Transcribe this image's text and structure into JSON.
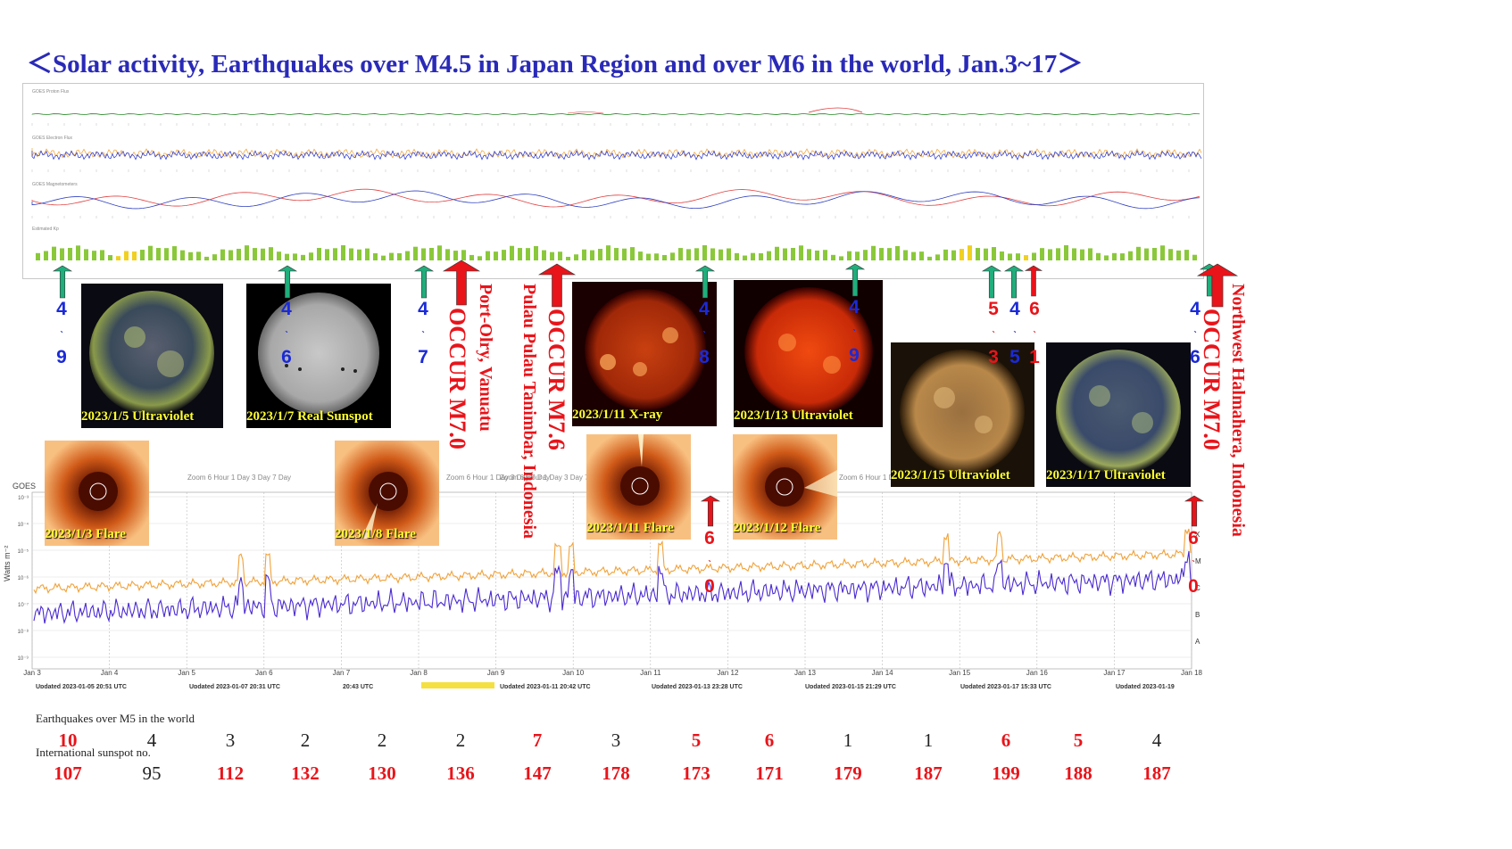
{
  "title": "＜Solar activity, Earthquakes over M4.5 in Japan Region and over M6 in the world,   Jan.3~17＞",
  "colors": {
    "title": "#2a2ab8",
    "red": "#e8141a",
    "blue": "#1a2ad8",
    "green_arrow": "#1fae7c",
    "yellow_caption": "#ffff30",
    "xray_short": "#f0a23a",
    "xray_long": "#4a2ad0"
  },
  "top_panel": {
    "panel_titles": [
      "GOES Proton Flux",
      "GOES Electron Flux",
      "GOES Magnetometers",
      "Estimated Kp"
    ]
  },
  "bottom_panel": {
    "goes_label": "GOES",
    "ylabel": "Watts m⁻²",
    "zoom_label": "Zoom",
    "zoom_opts": [
      "6 Hour",
      "1 Day",
      "3 Day",
      "7 Day"
    ],
    "class_labels": [
      "X",
      "M",
      "C",
      "B",
      "A"
    ],
    "ytick_labels": [
      "10⁻³",
      "10⁻⁴",
      "10⁻⁵",
      "10⁻⁶",
      "10⁻⁷",
      "10⁻⁸",
      "10⁻⁹"
    ],
    "date_labels": [
      "Jan 3",
      "Jan 4",
      "Jan 5",
      "Jan 6",
      "Jan 7",
      "Jan 8",
      "Jan 9",
      "Jan 10",
      "Jan 11",
      "Jan 12",
      "Jan 13",
      "Jan 14",
      "Jan 15",
      "Jan 16",
      "Jan 17",
      "Jan 18"
    ],
    "updated_labels": [
      "Updated 2023-01-05 20:51 UTC",
      "Updated 2023-01-07 20:31 UTC",
      "20:43 UTC",
      "Updated 2023-01-11 20:42 UTC",
      "Updated 2023-01-13 23:28 UTC",
      "Updated 2023-01-15 21:29 UTC",
      "Updated 2023-01-17 15:33 UTC",
      "Updated 2023-01-19"
    ]
  },
  "images": [
    {
      "caption": "2023/1/5 Ultraviolet",
      "icon": "sun-ultraviolet-green"
    },
    {
      "caption": "2023/1/7 Real Sunspot",
      "icon": "sun-white-light"
    },
    {
      "caption": "2023/1/11 X-ray",
      "icon": "sun-xray"
    },
    {
      "caption": "2023/1/13 Ultraviolet",
      "icon": "sun-ultraviolet-red"
    },
    {
      "caption": "2023/1/15 Ultraviolet",
      "icon": "sun-ultraviolet-gold"
    },
    {
      "caption": "2023/1/17 Ultraviolet",
      "icon": "sun-ultraviolet-green"
    },
    {
      "caption": "2023/1/3 Flare",
      "icon": "coronagraph"
    },
    {
      "caption": "2023/1/8 Flare",
      "icon": "coronagraph"
    },
    {
      "caption": "2023/1/11 Flare",
      "icon": "coronagraph"
    },
    {
      "caption": "2023/1/12 Flare",
      "icon": "coronagraph"
    }
  ],
  "japan_quakes": [
    {
      "mag": "4.9",
      "color": "blue"
    },
    {
      "mag": "4.6",
      "color": "blue"
    },
    {
      "mag": "4.7",
      "color": "blue"
    },
    {
      "mag": "4.8",
      "color": "blue"
    },
    {
      "mag": "4.9",
      "color": "blue"
    },
    {
      "mag": "5.3",
      "color": "red"
    },
    {
      "mag": "4.5",
      "color": "blue"
    },
    {
      "mag": "6.1",
      "color": "red"
    },
    {
      "mag": "4.6",
      "color": "blue"
    }
  ],
  "world_quakes": [
    {
      "label": "OCCUR M7.0",
      "place": "Port-Olry, Vanuatu"
    },
    {
      "label": "OCCUR M7.6",
      "place": "Pulau Pulau Tanimbar, Indonesia"
    },
    {
      "label": "OCCUR M7.0",
      "place": "Northwest Halmahera, Indonesia"
    }
  ],
  "small_world_quakes": [
    "6.0",
    "6.0"
  ],
  "row_labels": {
    "quakes": "Earthquakes over M5 in the world",
    "sunspots": "International sunspot no."
  },
  "chart_data": {
    "type": "table",
    "categories": [
      "Jan 3",
      "Jan 4",
      "Jan 5",
      "Jan 6",
      "Jan 7",
      "Jan 8",
      "Jan 9",
      "Jan 10",
      "Jan 11",
      "Jan 12",
      "Jan 13",
      "Jan 14",
      "Jan 15",
      "Jan 16",
      "Jan 17"
    ],
    "series": [
      {
        "name": "Earthquakes over M5 in the world",
        "values": [
          10,
          4,
          3,
          2,
          2,
          2,
          7,
          3,
          5,
          6,
          1,
          1,
          6,
          5,
          4
        ],
        "highlight": [
          true,
          false,
          false,
          false,
          false,
          false,
          true,
          false,
          true,
          true,
          false,
          false,
          true,
          true,
          false
        ]
      },
      {
        "name": "International sunspot no.",
        "values": [
          107,
          95,
          112,
          132,
          130,
          136,
          147,
          178,
          173,
          171,
          179,
          187,
          199,
          188,
          187
        ],
        "highlight": [
          true,
          false,
          true,
          true,
          true,
          true,
          true,
          true,
          true,
          true,
          true,
          true,
          true,
          true,
          true
        ]
      }
    ]
  }
}
